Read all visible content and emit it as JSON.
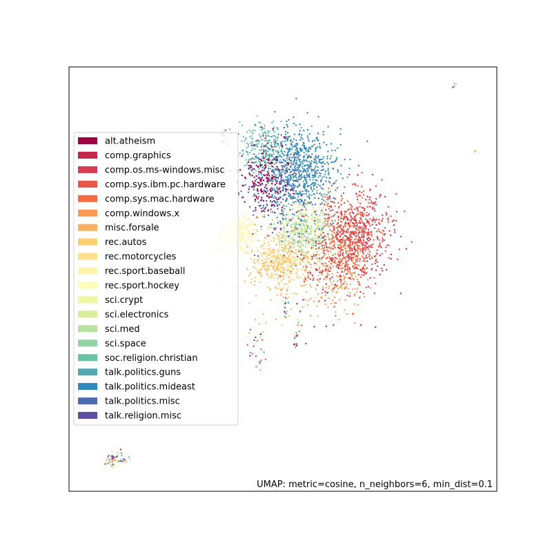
{
  "chart_data": {
    "type": "scatter",
    "annotation": "UMAP: metric=cosine, n_neighbors=6, min_dist=0.1",
    "xlim": [
      0,
      100
    ],
    "ylim": [
      0,
      100
    ],
    "axes_ticks": false,
    "grid": false,
    "legend_placement": "center-left",
    "categories": [
      {
        "name": "alt.atheism",
        "color": "#9e0142"
      },
      {
        "name": "comp.graphics",
        "color": "#c2294a"
      },
      {
        "name": "comp.os.ms-windows.misc",
        "color": "#d53e4f"
      },
      {
        "name": "comp.sys.ibm.pc.hardware",
        "color": "#e65949"
      },
      {
        "name": "comp.sys.mac.hardware",
        "color": "#f46d43"
      },
      {
        "name": "comp.windows.x",
        "color": "#f99b57"
      },
      {
        "name": "misc.forsale",
        "color": "#fdb262"
      },
      {
        "name": "rec.autos",
        "color": "#fecf72"
      },
      {
        "name": "rec.motorcycles",
        "color": "#fee08b"
      },
      {
        "name": "rec.sport.baseball",
        "color": "#fff4ac"
      },
      {
        "name": "rec.sport.hockey",
        "color": "#fbfdb9"
      },
      {
        "name": "sci.crypt",
        "color": "#eef8a4"
      },
      {
        "name": "sci.electronics",
        "color": "#d7ef9b"
      },
      {
        "name": "sci.med",
        "color": "#b8e2a1"
      },
      {
        "name": "sci.space",
        "color": "#93d3a4"
      },
      {
        "name": "soc.religion.christian",
        "color": "#6cc2a4"
      },
      {
        "name": "talk.politics.guns",
        "color": "#51a9b0"
      },
      {
        "name": "talk.politics.mideast",
        "color": "#3288bd"
      },
      {
        "name": "talk.politics.misc",
        "color": "#4c6db1"
      },
      {
        "name": "talk.religion.misc",
        "color": "#5e4fa2"
      }
    ],
    "clusters": [
      {
        "label": "talk.politics.mideast",
        "cx": 54.0,
        "cy": 76.5,
        "sx": 4.5,
        "sy": 5.5,
        "n": 520
      },
      {
        "label": "soc.religion.christian",
        "cx": 45.0,
        "cy": 81.0,
        "sx": 3.2,
        "sy": 3.0,
        "n": 220
      },
      {
        "label": "alt.atheism",
        "cx": 46.0,
        "cy": 74.0,
        "sx": 2.8,
        "sy": 4.0,
        "n": 200
      },
      {
        "label": "talk.religion.misc",
        "cx": 47.0,
        "cy": 73.0,
        "sx": 3.5,
        "sy": 5.0,
        "n": 120
      },
      {
        "label": "talk.politics.misc",
        "cx": 52.5,
        "cy": 70.0,
        "sx": 5.0,
        "sy": 6.0,
        "n": 200
      },
      {
        "label": "talk.politics.guns",
        "cx": 55.0,
        "cy": 73.0,
        "sx": 4.0,
        "sy": 4.0,
        "n": 120
      },
      {
        "label": "comp.sys.ibm.pc.hardware",
        "cx": 67.0,
        "cy": 60.5,
        "sx": 3.5,
        "sy": 5.0,
        "n": 300
      },
      {
        "label": "comp.os.ms-windows.misc",
        "cx": 67.5,
        "cy": 61.5,
        "sx": 4.0,
        "sy": 5.0,
        "n": 260
      },
      {
        "label": "comp.sys.mac.hardware",
        "cx": 64.0,
        "cy": 58.0,
        "sx": 3.5,
        "sy": 5.5,
        "n": 220
      },
      {
        "label": "comp.graphics",
        "cx": 62.0,
        "cy": 55.0,
        "sx": 5.5,
        "sy": 6.5,
        "n": 200
      },
      {
        "label": "comp.windows.x",
        "cx": 63.0,
        "cy": 51.0,
        "sx": 3.5,
        "sy": 4.5,
        "n": 160
      },
      {
        "label": "misc.forsale",
        "cx": 52.0,
        "cy": 52.5,
        "sx": 6.0,
        "sy": 6.5,
        "n": 200
      },
      {
        "label": "rec.autos",
        "cx": 48.5,
        "cy": 54.0,
        "sx": 2.5,
        "sy": 2.8,
        "n": 220
      },
      {
        "label": "rec.motorcycles",
        "cx": 51.5,
        "cy": 55.5,
        "sx": 2.8,
        "sy": 3.0,
        "n": 140
      },
      {
        "label": "rec.sport.baseball",
        "cx": 39.5,
        "cy": 60.5,
        "sx": 2.0,
        "sy": 2.0,
        "n": 200
      },
      {
        "label": "rec.sport.hockey",
        "cx": 37.5,
        "cy": 59.5,
        "sx": 2.3,
        "sy": 2.0,
        "n": 180
      },
      {
        "label": "sci.crypt",
        "cx": 56.0,
        "cy": 64.0,
        "sx": 2.5,
        "sy": 2.5,
        "n": 120
      },
      {
        "label": "sci.electronics",
        "cx": 58.0,
        "cy": 60.0,
        "sx": 4.0,
        "sy": 5.0,
        "n": 120
      },
      {
        "label": "sci.med",
        "cx": 52.5,
        "cy": 60.0,
        "sx": 2.8,
        "sy": 2.8,
        "n": 140
      },
      {
        "label": "sci.space",
        "cx": 56.5,
        "cy": 61.0,
        "sx": 2.8,
        "sy": 2.8,
        "n": 140
      }
    ],
    "outlier_groups": [
      {
        "cx": 11.0,
        "cy": 7.5,
        "sx": 1.2,
        "sy": 1.0,
        "n": 60
      },
      {
        "cx": 44.0,
        "cy": 33.5,
        "sx": 1.2,
        "sy": 2.5,
        "n": 26
      },
      {
        "cx": 53.0,
        "cy": 35.0,
        "sx": 0.6,
        "sy": 2.0,
        "n": 18
      },
      {
        "cx": 50.5,
        "cy": 43.0,
        "sx": 0.4,
        "sy": 2.0,
        "n": 14
      },
      {
        "cx": 36.0,
        "cy": 84.0,
        "sx": 0.4,
        "sy": 1.0,
        "n": 10
      },
      {
        "cx": 90.0,
        "cy": 95.5,
        "sx": 0.3,
        "sy": 0.3,
        "n": 6
      },
      {
        "cx": 95.0,
        "cy": 80.0,
        "sx": 0.1,
        "sy": 0.1,
        "n": 2
      }
    ]
  }
}
